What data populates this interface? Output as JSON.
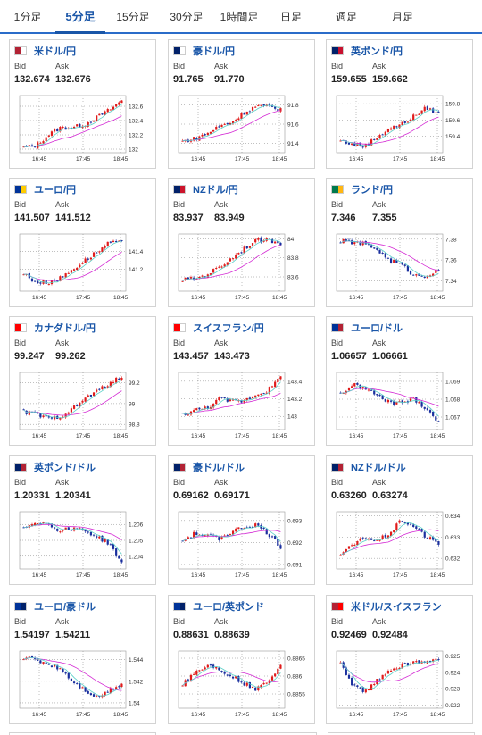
{
  "tabs": [
    {
      "label": "1分足"
    },
    {
      "label": "5分足",
      "active": true
    },
    {
      "label": "15分足"
    },
    {
      "label": "30分足"
    },
    {
      "label": "1時間足"
    },
    {
      "label": "日足"
    },
    {
      "label": "週足"
    },
    {
      "label": "月足"
    }
  ],
  "labels": {
    "bid": "Bid",
    "ask": "Ask"
  },
  "colors": {
    "accent": "#1a56a8",
    "up": "#e01b1b",
    "down": "#1a2f9e",
    "ma_long": "#d42bd4",
    "ma_short": "#5ad0c8",
    "grid": "#808080"
  },
  "pairs": [
    {
      "name": "米ドル/円",
      "flag": [
        "#b22234",
        "#ffffff"
      ],
      "bid": "132.674",
      "ask": "132.676",
      "chart_data": {
        "type": "candlestick",
        "x_ticks": [
          "16:45",
          "17:45",
          "18:45"
        ],
        "y_ticks": [
          "132.6",
          "132.4",
          "132.2",
          "132"
        ],
        "ylim": [
          131.95,
          132.75
        ],
        "trend": [
          132.02,
          132.05,
          132.2,
          132.3,
          132.3,
          132.35,
          132.45,
          132.55,
          132.68
        ]
      }
    },
    {
      "name": "豪ドル/円",
      "flag": [
        "#012169",
        "#ffffff"
      ],
      "bid": "91.765",
      "ask": "91.770",
      "chart_data": {
        "type": "candlestick",
        "x_ticks": [
          "16:45",
          "17:45",
          "18:45"
        ],
        "y_ticks": [
          "91.8",
          "91.6",
          "91.4"
        ],
        "ylim": [
          91.3,
          91.9
        ],
        "trend": [
          91.42,
          91.45,
          91.5,
          91.58,
          91.62,
          91.72,
          91.79,
          91.78,
          91.76
        ]
      }
    },
    {
      "name": "英ポンド/円",
      "flag": [
        "#012169",
        "#c8102e"
      ],
      "bid": "159.655",
      "ask": "159.662",
      "chart_data": {
        "type": "candlestick",
        "x_ticks": [
          "16:45",
          "17:45",
          "18:45"
        ],
        "y_ticks": [
          "159.8",
          "159.6",
          "159.4"
        ],
        "ylim": [
          159.2,
          159.9
        ],
        "trend": [
          159.35,
          159.3,
          159.28,
          159.4,
          159.5,
          159.55,
          159.65,
          159.75,
          159.68
        ]
      }
    },
    {
      "name": "ユーロ/円",
      "flag": [
        "#003399",
        "#ffcc00"
      ],
      "bid": "141.507",
      "ask": "141.512",
      "chart_data": {
        "type": "candlestick",
        "x_ticks": [
          "16:45",
          "17:45",
          "18:45"
        ],
        "y_ticks": [
          "141.4",
          "141.2"
        ],
        "ylim": [
          140.95,
          141.6
        ],
        "trend": [
          141.15,
          141.05,
          141.05,
          141.1,
          141.2,
          141.3,
          141.4,
          141.5,
          141.5
        ]
      }
    },
    {
      "name": "NZドル/円",
      "flag": [
        "#012169",
        "#cc142b"
      ],
      "bid": "83.937",
      "ask": "83.949",
      "chart_data": {
        "type": "candlestick",
        "x_ticks": [
          "16:45",
          "17:45",
          "18:45"
        ],
        "y_ticks": [
          "84",
          "83.8",
          "83.6"
        ],
        "ylim": [
          83.45,
          84.05
        ],
        "trend": [
          83.57,
          83.58,
          83.63,
          83.7,
          83.8,
          83.9,
          83.98,
          83.99,
          83.95
        ]
      }
    },
    {
      "name": "ランド/円",
      "flag": [
        "#007a4d",
        "#ffb612"
      ],
      "bid": "7.346",
      "ask": "7.355",
      "chart_data": {
        "type": "candlestick",
        "x_ticks": [
          "16:45",
          "17:45",
          "18:45"
        ],
        "y_ticks": [
          "7.38",
          "7.36",
          "7.34"
        ],
        "ylim": [
          7.33,
          7.385
        ],
        "trend": [
          7.378,
          7.377,
          7.375,
          7.37,
          7.36,
          7.355,
          7.345,
          7.345,
          7.35
        ]
      }
    },
    {
      "name": "カナダドル/円",
      "flag": [
        "#ff0000",
        "#ffffff"
      ],
      "bid": "99.247",
      "ask": "99.262",
      "chart_data": {
        "type": "candlestick",
        "x_ticks": [
          "16:45",
          "17:45",
          "18:45"
        ],
        "y_ticks": [
          "99.2",
          "99",
          "98.8"
        ],
        "ylim": [
          98.75,
          99.3
        ],
        "trend": [
          98.92,
          98.9,
          98.85,
          98.88,
          98.95,
          99.05,
          99.12,
          99.2,
          99.25
        ]
      }
    },
    {
      "name": "スイスフラン/円",
      "flag": [
        "#ff0000",
        "#ffffff"
      ],
      "bid": "143.457",
      "ask": "143.473",
      "chart_data": {
        "type": "candlestick",
        "x_ticks": [
          "16:45",
          "17:45",
          "18:45"
        ],
        "y_ticks": [
          "143.4",
          "143.2",
          "143"
        ],
        "ylim": [
          142.85,
          143.5
        ],
        "trend": [
          143.02,
          143.07,
          143.1,
          143.2,
          143.17,
          143.18,
          143.25,
          143.3,
          143.45
        ]
      }
    },
    {
      "name": "ユーロ/ドル",
      "flag": [
        "#003399",
        "#b22234"
      ],
      "bid": "1.06657",
      "ask": "1.06661",
      "chart_data": {
        "type": "candlestick",
        "x_ticks": [
          "16:45",
          "17:45",
          "18:45"
        ],
        "y_ticks": [
          "1.069",
          "1.068",
          "1.067"
        ],
        "ylim": [
          1.0663,
          1.0695
        ],
        "trend": [
          1.0683,
          1.0688,
          1.0686,
          1.0682,
          1.0678,
          1.0678,
          1.068,
          1.0675,
          1.0667
        ]
      }
    },
    {
      "name": "英ポンド/ドル",
      "flag": [
        "#012169",
        "#b22234"
      ],
      "bid": "1.20331",
      "ask": "1.20341",
      "chart_data": {
        "type": "candlestick",
        "x_ticks": [
          "16:45",
          "17:45",
          "18:45"
        ],
        "y_ticks": [
          "1.206",
          "1.205",
          "1.204"
        ],
        "ylim": [
          1.2032,
          1.2068
        ],
        "trend": [
          1.2058,
          1.2062,
          1.206,
          1.2056,
          1.2058,
          1.2056,
          1.2052,
          1.2048,
          1.2035
        ]
      }
    },
    {
      "name": "豪ドル/ドル",
      "flag": [
        "#012169",
        "#b22234"
      ],
      "bid": "0.69162",
      "ask": "0.69171",
      "chart_data": {
        "type": "candlestick",
        "x_ticks": [
          "16:45",
          "17:45",
          "18:45"
        ],
        "y_ticks": [
          "0.693",
          "0.692",
          "0.691"
        ],
        "ylim": [
          0.6908,
          0.6934
        ],
        "trend": [
          0.6921,
          0.6924,
          0.6923,
          0.6922,
          0.6925,
          0.6927,
          0.6928,
          0.6924,
          0.6918
        ]
      }
    },
    {
      "name": "NZドル/ドル",
      "flag": [
        "#012169",
        "#b22234"
      ],
      "bid": "0.63260",
      "ask": "0.63274",
      "chart_data": {
        "type": "candlestick",
        "x_ticks": [
          "16:45",
          "17:45",
          "18:45"
        ],
        "y_ticks": [
          "0.634",
          "0.633",
          "0.632"
        ],
        "ylim": [
          0.6315,
          0.6342
        ],
        "trend": [
          0.6322,
          0.6326,
          0.633,
          0.6328,
          0.6332,
          0.6338,
          0.6335,
          0.633,
          0.6327
        ]
      }
    },
    {
      "name": "ユーロ/豪ドル",
      "flag": [
        "#003399",
        "#012169"
      ],
      "bid": "1.54197",
      "ask": "1.54211",
      "chart_data": {
        "type": "candlestick",
        "x_ticks": [
          "16:45",
          "17:45",
          "18:45"
        ],
        "y_ticks": [
          "1.544",
          "1.542",
          "1.54"
        ],
        "ylim": [
          1.5395,
          1.5448
        ],
        "trend": [
          1.5442,
          1.544,
          1.5436,
          1.5432,
          1.542,
          1.5412,
          1.5405,
          1.5412,
          1.5418
        ]
      }
    },
    {
      "name": "ユーロ/英ポンド",
      "flag": [
        "#003399",
        "#012169"
      ],
      "bid": "0.88631",
      "ask": "0.88639",
      "chart_data": {
        "type": "candlestick",
        "x_ticks": [
          "16:45",
          "17:45",
          "18:45"
        ],
        "y_ticks": [
          "0.8865",
          "0.886",
          "0.8855"
        ],
        "ylim": [
          0.8851,
          0.8867
        ],
        "trend": [
          0.8858,
          0.8861,
          0.8863,
          0.8862,
          0.886,
          0.8858,
          0.8856,
          0.8859,
          0.8863
        ]
      }
    },
    {
      "name": "米ドル/スイスフラン",
      "flag": [
        "#b22234",
        "#ff0000"
      ],
      "bid": "0.92469",
      "ask": "0.92484",
      "chart_data": {
        "type": "candlestick",
        "x_ticks": [
          "16:45",
          "17:45",
          "18:45"
        ],
        "y_ticks": [
          "0.925",
          "0.924",
          "0.923",
          "0.922"
        ],
        "ylim": [
          0.9218,
          0.9253
        ],
        "trend": [
          0.9245,
          0.9232,
          0.9228,
          0.9235,
          0.9242,
          0.9244,
          0.9246,
          0.9247,
          0.9247
        ]
      }
    }
  ]
}
